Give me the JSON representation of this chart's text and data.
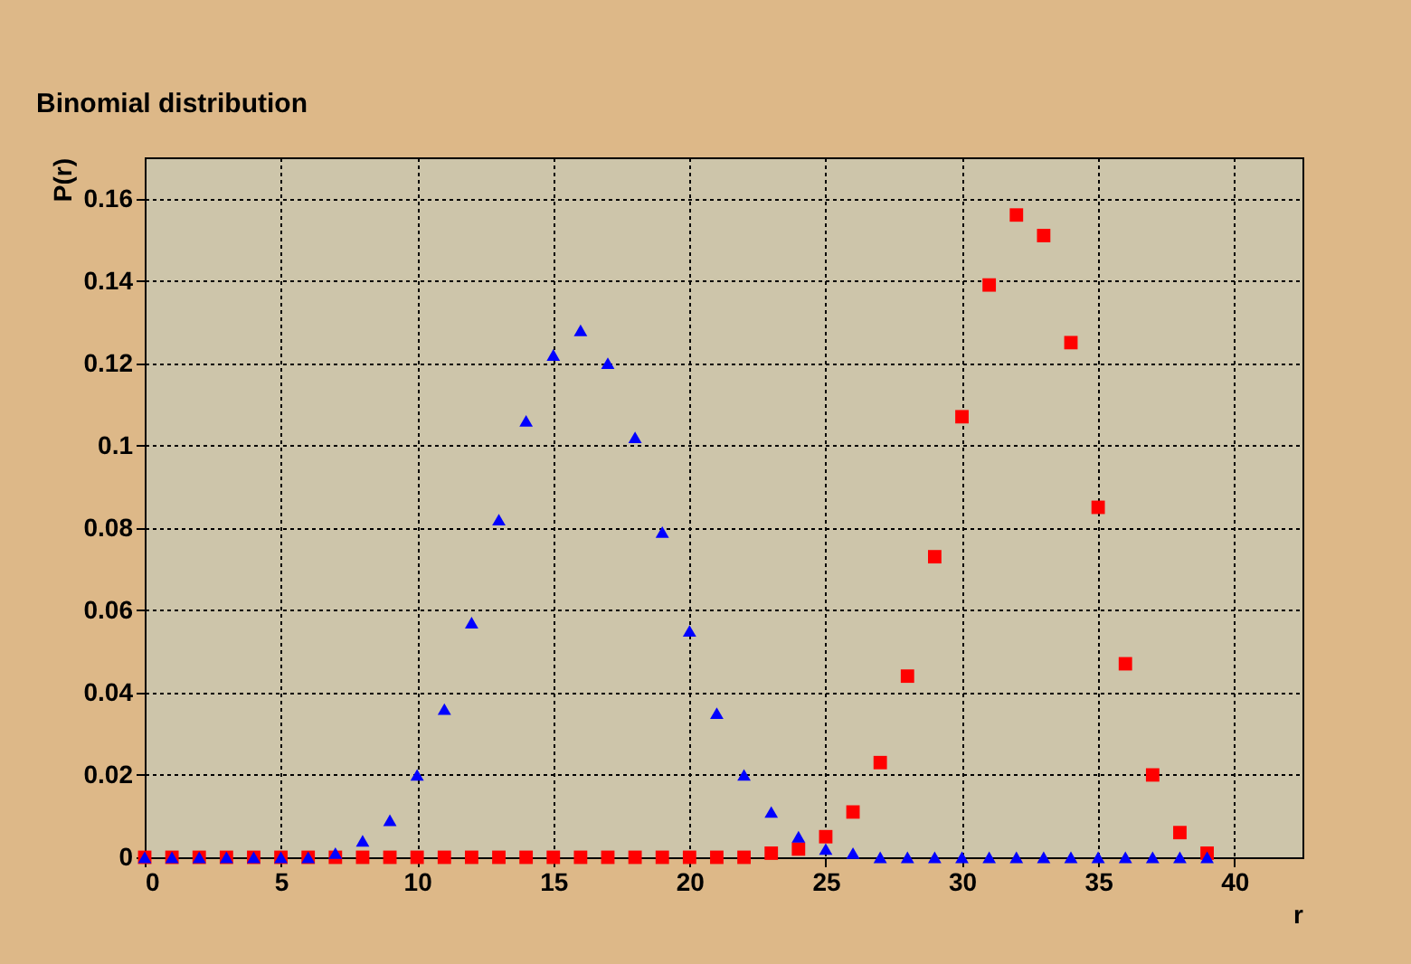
{
  "chart_data": {
    "type": "scatter",
    "title": "Binomial distribution",
    "xlabel": "r",
    "ylabel": "P(r)",
    "x": [
      0,
      1,
      2,
      3,
      4,
      5,
      6,
      7,
      8,
      9,
      10,
      11,
      12,
      13,
      14,
      15,
      16,
      17,
      18,
      19,
      20,
      21,
      22,
      23,
      24,
      25,
      26,
      27,
      28,
      29,
      30,
      31,
      32,
      33,
      34,
      35,
      36,
      37,
      38,
      39
    ],
    "series": [
      {
        "color": "#0000ff",
        "marker": "triangle",
        "values": [
          0,
          0,
          0,
          0,
          0,
          0,
          0,
          0.001,
          0.004,
          0.009,
          0.02,
          0.036,
          0.057,
          0.082,
          0.106,
          0.122,
          0.128,
          0.12,
          0.102,
          0.079,
          0.055,
          0.035,
          0.02,
          0.011,
          0.005,
          0.002,
          0.001,
          0,
          0,
          0,
          0,
          0,
          0,
          0,
          0,
          0,
          0,
          0,
          0,
          0
        ]
      },
      {
        "color": "#ff0000",
        "marker": "square",
        "values": [
          0,
          0,
          0,
          0,
          0,
          0,
          0,
          0,
          0,
          0,
          0,
          0,
          0,
          0,
          0,
          0,
          0,
          0,
          0,
          0,
          0,
          0,
          0,
          0.001,
          0.002,
          0.005,
          0.011,
          0.023,
          0.044,
          0.073,
          0.107,
          0.139,
          0.156,
          0.151,
          0.125,
          0.085,
          0.047,
          0.02,
          0.006,
          0.001
        ]
      }
    ],
    "xlim": [
      0,
      42.5
    ],
    "xticks": [
      0,
      5,
      10,
      15,
      20,
      25,
      30,
      35,
      40
    ],
    "ylim": [
      0,
      0.17
    ],
    "yticks": [
      0,
      0.02,
      0.04,
      0.06,
      0.08,
      0.1,
      0.12,
      0.14,
      0.16
    ],
    "grid": true
  }
}
